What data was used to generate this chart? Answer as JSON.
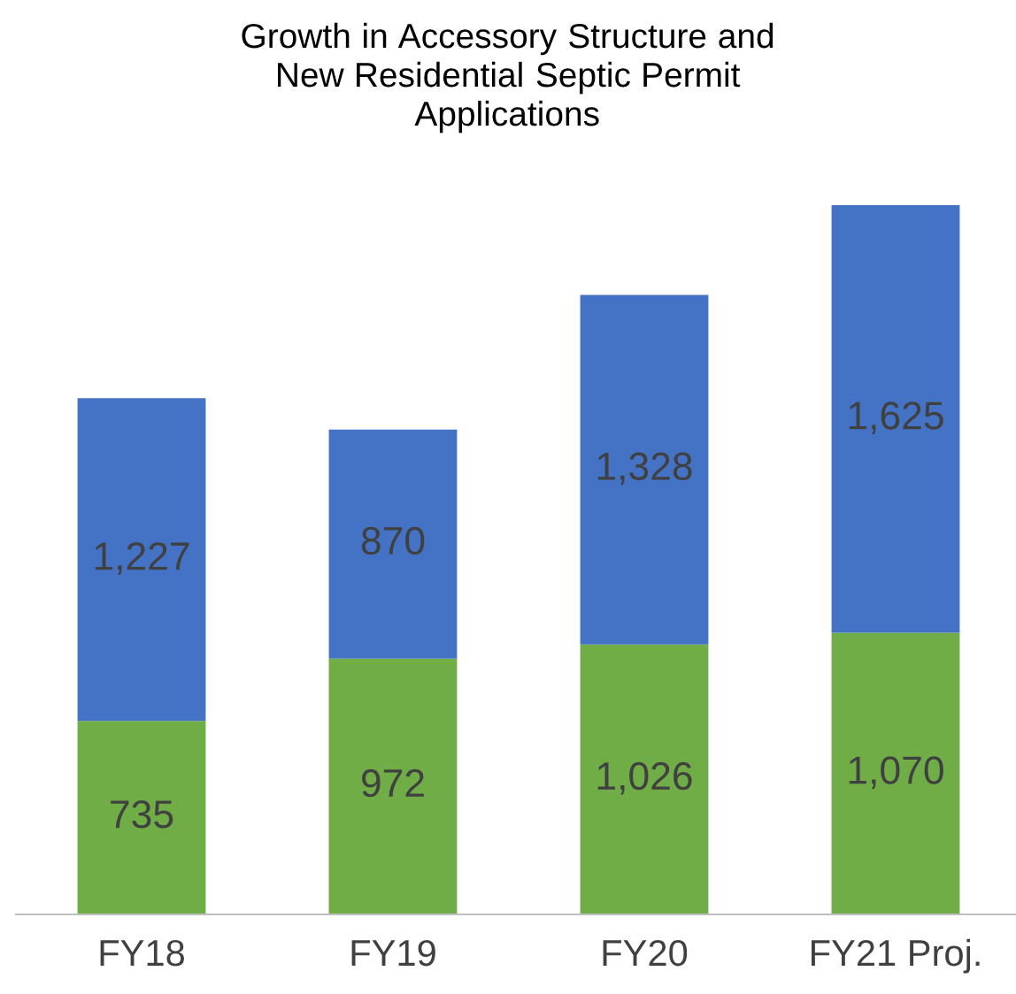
{
  "chart_data": {
    "type": "bar",
    "title": "Growth in Accessory Structure and New Residential Septic Permit Applications",
    "categories": [
      "FY18",
      "FY19",
      "FY20",
      "FY21 Proj."
    ],
    "stacked": true,
    "legend": false,
    "grid": false,
    "series": [
      {
        "color": "#70ad47",
        "values": [
          735,
          972,
          1026,
          1070
        ],
        "value_labels": [
          "735",
          "972",
          "1,026",
          "1,070"
        ]
      },
      {
        "color": "#4472c4",
        "values": [
          1227,
          870,
          1328,
          1625
        ],
        "value_labels": [
          "1,227",
          "870",
          "1,328",
          "1,625"
        ]
      }
    ]
  }
}
